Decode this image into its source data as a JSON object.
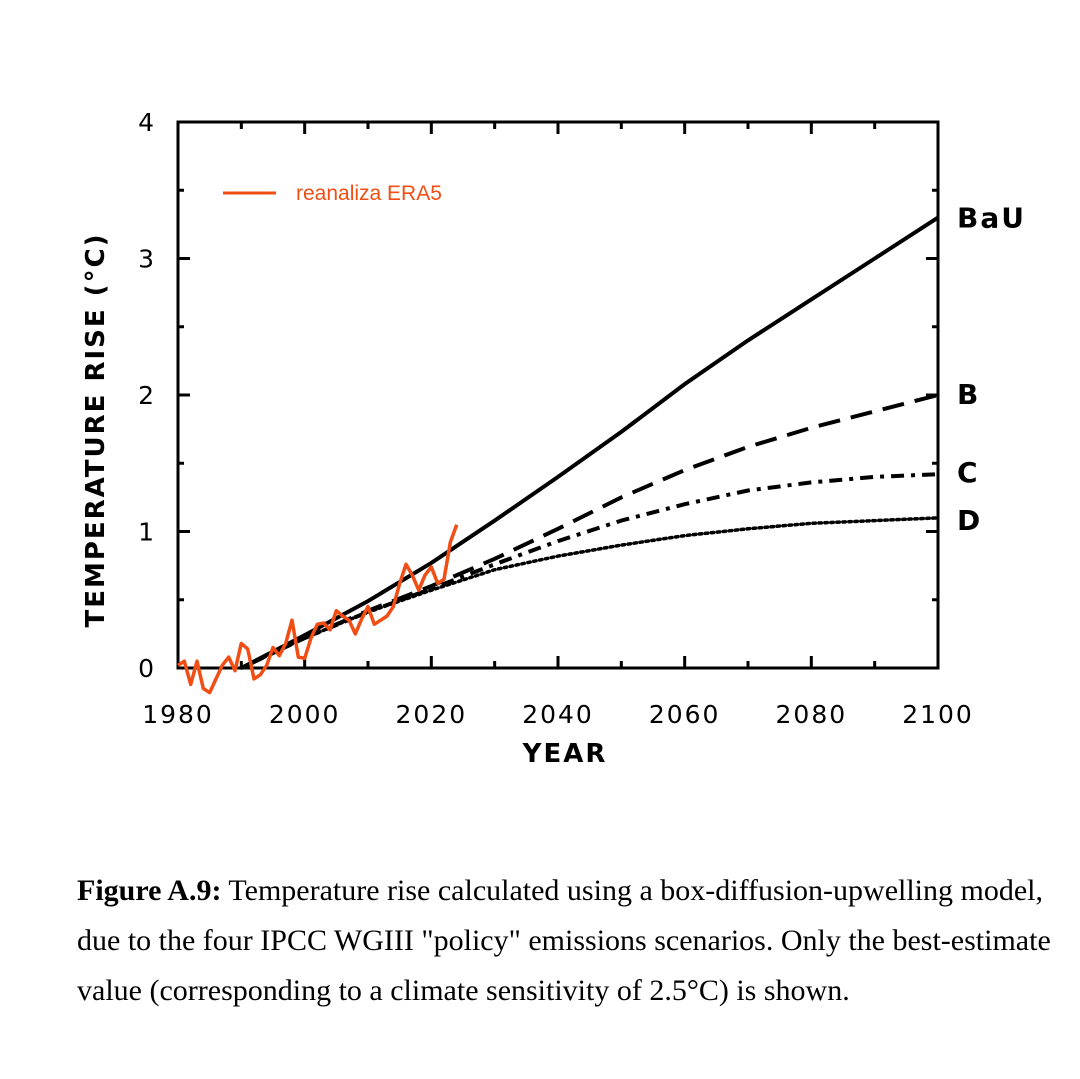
{
  "chart_data": {
    "type": "line",
    "xlabel": "YEAR",
    "ylabel": "TEMPERATURE RISE (°C)",
    "xlim": [
      1980,
      2100
    ],
    "ylim": [
      0,
      4
    ],
    "x_ticks": [
      1980,
      2000,
      2020,
      2040,
      2060,
      2080,
      2100
    ],
    "y_ticks": [
      0,
      1,
      2,
      3,
      4
    ],
    "series": [
      {
        "name": "BaU",
        "style": "solid",
        "x": [
          1990,
          2000,
          2010,
          2020,
          2030,
          2040,
          2050,
          2060,
          2070,
          2080,
          2090,
          2100
        ],
        "values": [
          0.0,
          0.24,
          0.49,
          0.77,
          1.08,
          1.4,
          1.73,
          2.08,
          2.4,
          2.7,
          3.0,
          3.3
        ]
      },
      {
        "name": "B",
        "style": "dashed",
        "x": [
          1990,
          2000,
          2010,
          2020,
          2030,
          2040,
          2050,
          2060,
          2070,
          2080,
          2090,
          2100
        ],
        "values": [
          0.0,
          0.22,
          0.42,
          0.6,
          0.8,
          1.02,
          1.25,
          1.45,
          1.62,
          1.76,
          1.88,
          2.0
        ]
      },
      {
        "name": "C",
        "style": "dash-dot",
        "x": [
          1990,
          2000,
          2010,
          2020,
          2030,
          2040,
          2050,
          2060,
          2070,
          2080,
          2090,
          2100
        ],
        "values": [
          0.0,
          0.22,
          0.41,
          0.58,
          0.76,
          0.93,
          1.08,
          1.2,
          1.3,
          1.36,
          1.4,
          1.42
        ]
      },
      {
        "name": "D",
        "style": "dotted",
        "x": [
          1990,
          2000,
          2010,
          2020,
          2030,
          2040,
          2050,
          2060,
          2070,
          2080,
          2090,
          2100
        ],
        "values": [
          0.0,
          0.22,
          0.41,
          0.57,
          0.72,
          0.82,
          0.9,
          0.97,
          1.02,
          1.06,
          1.08,
          1.1
        ]
      },
      {
        "name": "reanaliza ERA5",
        "style": "solid",
        "color": "#f04e14",
        "x": [
          1980,
          1981,
          1982,
          1983,
          1984,
          1985,
          1986,
          1987,
          1988,
          1989,
          1990,
          1991,
          1992,
          1993,
          1994,
          1995,
          1996,
          1997,
          1998,
          1999,
          2000,
          2001,
          2002,
          2003,
          2004,
          2005,
          2006,
          2007,
          2008,
          2009,
          2010,
          2011,
          2012,
          2013,
          2014,
          2015,
          2016,
          2017,
          2018,
          2019,
          2020,
          2021,
          2022,
          2023,
          2024
        ],
        "values": [
          0.02,
          0.05,
          -0.12,
          0.05,
          -0.15,
          -0.18,
          -0.08,
          0.02,
          0.08,
          -0.02,
          0.18,
          0.14,
          -0.08,
          -0.05,
          0.02,
          0.15,
          0.09,
          0.18,
          0.35,
          0.08,
          0.07,
          0.22,
          0.32,
          0.33,
          0.28,
          0.42,
          0.38,
          0.35,
          0.25,
          0.36,
          0.45,
          0.32,
          0.35,
          0.38,
          0.45,
          0.62,
          0.76,
          0.68,
          0.57,
          0.68,
          0.74,
          0.62,
          0.65,
          0.92,
          1.05
        ]
      }
    ],
    "legend": {
      "label": "reanaliza ERA5",
      "color": "#f04e14",
      "placement": "top-left"
    }
  },
  "caption": {
    "bold": "Figure A.9:",
    "text": " Temperature rise calculated using a box-diffusion-upwelling model, due to the four IPCC WGIII \"policy\" emissions scenarios.  Only the best-estimate value (corresponding to a climate sensitivity of 2.5°C) is shown."
  }
}
